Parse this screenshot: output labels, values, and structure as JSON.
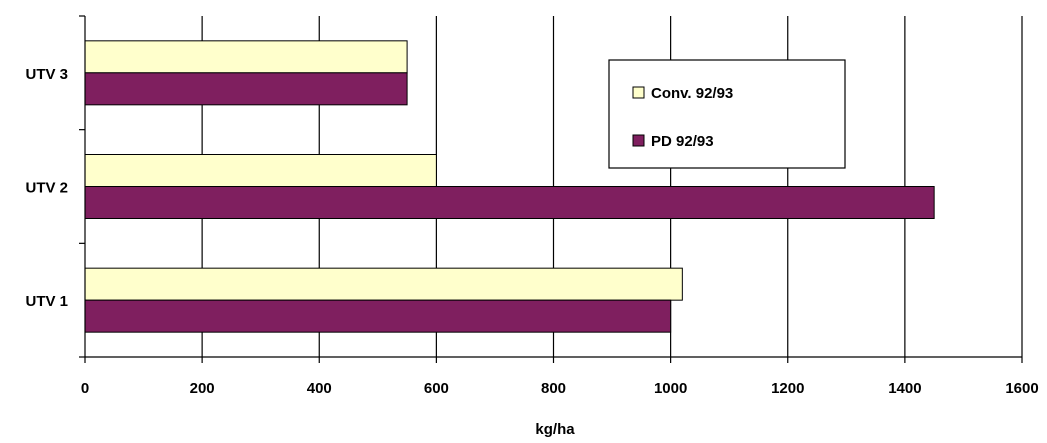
{
  "chart_data": {
    "type": "bar",
    "orientation": "horizontal",
    "categories": [
      "UTV 1",
      "UTV 2",
      "UTV 3"
    ],
    "series": [
      {
        "name": "Conv. 92/93",
        "values": [
          1020,
          600,
          550
        ],
        "color": "#FFFFCC"
      },
      {
        "name": "PD 92/93",
        "values": [
          1000,
          1450,
          550
        ],
        "color": "#7F1F5F"
      }
    ],
    "xlabel": "kg/ha",
    "ylabel": "",
    "xlim": [
      0,
      1600
    ],
    "xticks": [
      "0",
      "200",
      "400",
      "600",
      "800",
      "1000",
      "1200",
      "1400",
      "1600"
    ],
    "grid": "vertical",
    "legend_position": "top-right"
  }
}
